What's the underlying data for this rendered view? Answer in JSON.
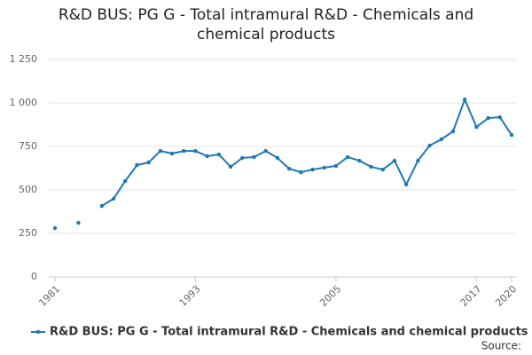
{
  "chart_data": {
    "type": "line",
    "title": "R&D BUS: PG G - Total intramural R&D - Chemicals and chemical products",
    "x": [
      1981,
      1982,
      1983,
      1984,
      1985,
      1986,
      1987,
      1988,
      1989,
      1990,
      1991,
      1992,
      1993,
      1994,
      1995,
      1996,
      1997,
      1998,
      1999,
      2000,
      2001,
      2002,
      2003,
      2004,
      2005,
      2006,
      2007,
      2008,
      2009,
      2010,
      2011,
      2012,
      2013,
      2014,
      2015,
      2016,
      2017,
      2018,
      2019,
      2020
    ],
    "series": [
      {
        "name": "R&D BUS: PG G - Total intramural R&D - Chemicals and chemical products",
        "color": "#1f78b4",
        "values": [
          280,
          null,
          311,
          null,
          408,
          449,
          551,
          643,
          658,
          724,
          709,
          724,
          724,
          694,
          704,
          633,
          684,
          689,
          724,
          684,
          622,
          602,
          617,
          628,
          638,
          689,
          668,
          633,
          617,
          668,
          531,
          668,
          755,
          791,
          837,
          1020,
          862,
          913,
          918,
          816
        ]
      }
    ],
    "xlim": [
      1981,
      2020
    ],
    "xticks": [
      1981,
      1993,
      2005,
      2017,
      2020
    ],
    "ylim": [
      0,
      1250
    ],
    "yticks": [
      0,
      250,
      500,
      750,
      {
        "value": 1000,
        "label": "1 000"
      },
      {
        "value": 1250,
        "label": "1 250"
      }
    ],
    "grid": true,
    "legend": "bottom",
    "source": "Source:"
  }
}
